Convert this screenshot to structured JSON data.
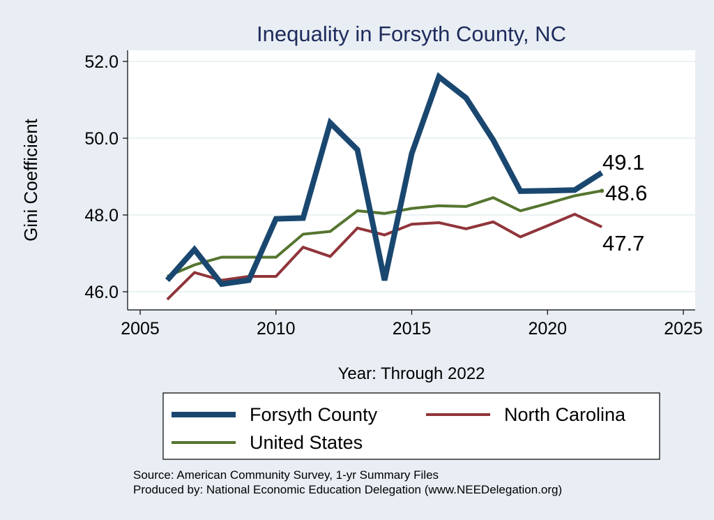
{
  "chart_data": {
    "type": "line",
    "title": "Inequality in Forsyth County, NC",
    "xlabel": "Year: Through 2022",
    "ylabel": "Gini Coefficient",
    "xlim": [
      2005,
      2025
    ],
    "ylim": [
      45.5,
      52.5
    ],
    "xticks": [
      2005,
      2010,
      2015,
      2020,
      2025
    ],
    "yticks": [
      46.0,
      48.0,
      50.0,
      52.0
    ],
    "ytick_labels": [
      "46.0",
      "48.0",
      "50.0",
      "52.0"
    ],
    "legend_position": "bottom",
    "series": [
      {
        "name": "Forsyth County",
        "color": "#1a476f",
        "end_label": "49.1",
        "x": [
          2006,
          2007,
          2008,
          2009,
          2010,
          2011,
          2012,
          2013,
          2014,
          2015,
          2016,
          2017,
          2018,
          2019,
          2020,
          2021,
          2022
        ],
        "values": [
          46.3,
          47.1,
          46.2,
          46.3,
          47.9,
          47.92,
          50.4,
          49.7,
          46.3,
          49.6,
          51.6,
          51.05,
          49.95,
          48.62,
          48.63,
          48.65,
          49.1
        ]
      },
      {
        "name": "North Carolina",
        "color": "#90353b",
        "end_label": "47.7",
        "x": [
          2006,
          2007,
          2008,
          2009,
          2010,
          2011,
          2012,
          2013,
          2014,
          2015,
          2016,
          2017,
          2018,
          2019,
          2020,
          2021,
          2022
        ],
        "values": [
          45.8,
          46.5,
          46.3,
          46.4,
          46.4,
          47.16,
          46.92,
          47.66,
          47.48,
          47.76,
          47.8,
          47.64,
          47.82,
          47.43,
          47.72,
          48.02,
          47.69
        ]
      },
      {
        "name": "United States",
        "color": "#55752f",
        "end_label": "48.6",
        "x": [
          2006,
          2007,
          2008,
          2009,
          2010,
          2011,
          2012,
          2013,
          2014,
          2015,
          2016,
          2017,
          2018,
          2019,
          2020,
          2021,
          2022
        ],
        "values": [
          46.4,
          46.7,
          46.9,
          46.9,
          46.9,
          47.5,
          47.57,
          48.11,
          48.04,
          48.17,
          48.24,
          48.22,
          48.45,
          48.11,
          48.3,
          48.5,
          48.63
        ]
      }
    ]
  },
  "source_lines": [
    "Source: American Community Survey, 1-yr Summary Files",
    "Produced by: National Economic Education Delegation (www.NEEDelegation.org)"
  ]
}
